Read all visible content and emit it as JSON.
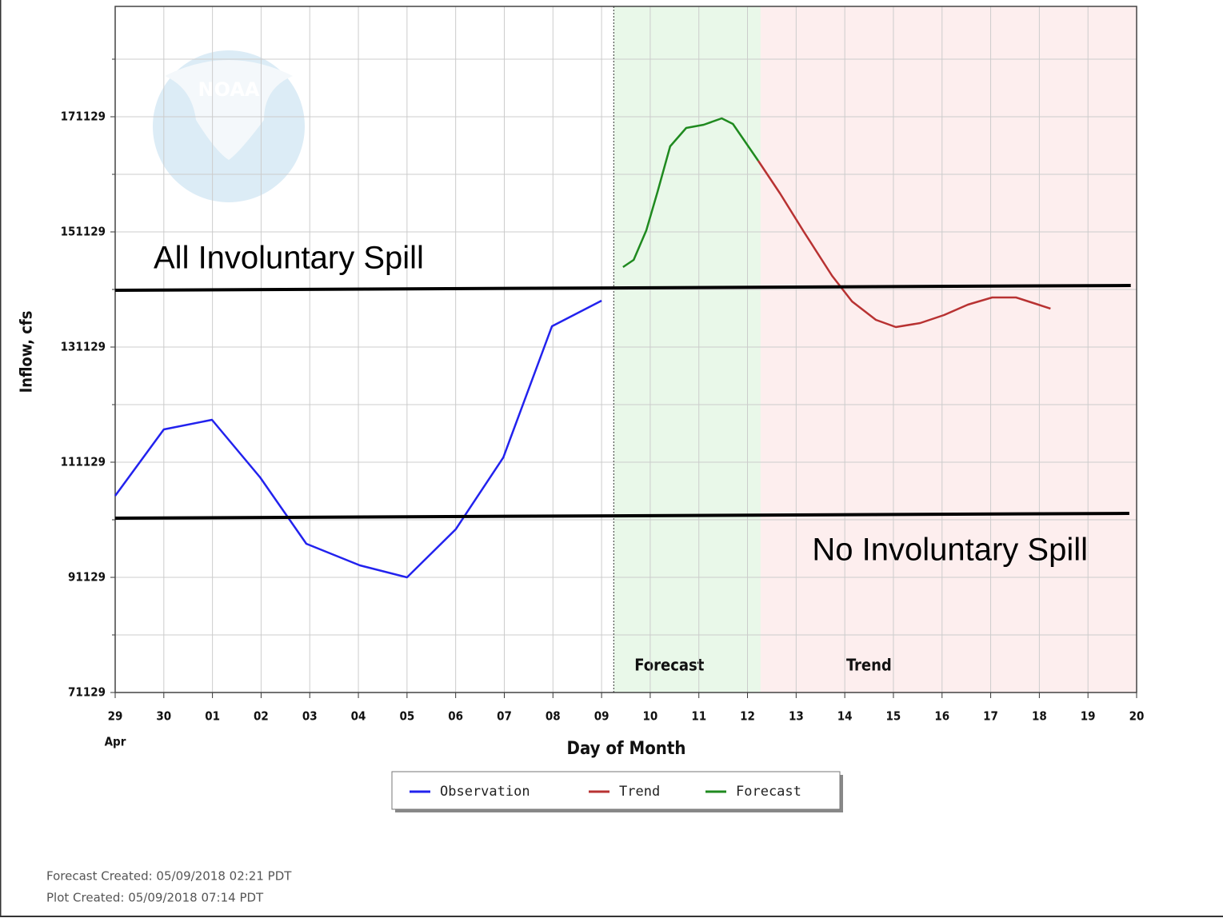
{
  "chart_data": {
    "type": "line",
    "logo_text": "NOAA",
    "y_label": "Inflow, cfs",
    "x_label": "Day of Month",
    "x_sublabel": "Apr",
    "xlim": [
      0,
      21
    ],
    "xticks": [
      {
        "value": 0,
        "label": "29"
      },
      {
        "value": 1,
        "label": "30"
      },
      {
        "value": 2,
        "label": "01"
      },
      {
        "value": 3,
        "label": "02"
      },
      {
        "value": 4,
        "label": "03"
      },
      {
        "value": 5,
        "label": "04"
      },
      {
        "value": 6,
        "label": "05"
      },
      {
        "value": 7,
        "label": "06"
      },
      {
        "value": 8,
        "label": "07"
      },
      {
        "value": 9,
        "label": "08"
      },
      {
        "value": 10,
        "label": "09"
      },
      {
        "value": 11,
        "label": "10"
      },
      {
        "value": 12,
        "label": "11"
      },
      {
        "value": 13,
        "label": "12"
      },
      {
        "value": 14,
        "label": "13"
      },
      {
        "value": 15,
        "label": "14"
      },
      {
        "value": 16,
        "label": "15"
      },
      {
        "value": 17,
        "label": "16"
      },
      {
        "value": 18,
        "label": "17"
      },
      {
        "value": 19,
        "label": "18"
      },
      {
        "value": 20,
        "label": "19"
      },
      {
        "value": 21,
        "label": "20"
      }
    ],
    "ylim": [
      71129,
      190296
    ],
    "yticks": [
      71129,
      91129,
      111129,
      131129,
      151129,
      171129
    ],
    "yminor": [
      81129,
      101129,
      121129,
      141129,
      161129,
      181129
    ],
    "grid": true,
    "divider_x": 10.25,
    "regions": [
      {
        "label": "Forecast",
        "x": [
          10.25,
          13.27
        ],
        "color": "#e9f8e9"
      },
      {
        "label": "Trend",
        "x": [
          13.27,
          21
        ],
        "color": "#fdeeee"
      }
    ],
    "series": [
      {
        "name": "Observation",
        "color": "#2222ee",
        "x": [
          0,
          1.0,
          1.99,
          2.98,
          3.93,
          5.03,
          6.0,
          7.0,
          7.98,
          8.98,
          10.0
        ],
        "values": [
          105296,
          116823,
          118490,
          108490,
          96962,
          93212,
          91129,
          99462,
          111962,
          134740,
          139185
        ]
      },
      {
        "name": "Trend",
        "color": "#b83232",
        "x": [
          13.22,
          13.67,
          14.16,
          14.74,
          15.15,
          15.64,
          16.05,
          16.55,
          17.04,
          17.53,
          18.03,
          18.52,
          18.93,
          19.23
        ],
        "values": [
          163490,
          157796,
          151129,
          143490,
          139046,
          135851,
          134601,
          135296,
          136685,
          138490,
          139740,
          139740,
          138629,
          137796
        ]
      },
      {
        "name": "Forecast",
        "color": "#1f8a1f",
        "x": [
          10.44,
          10.66,
          10.92,
          11.15,
          11.41,
          11.74,
          12.1,
          12.47,
          12.7,
          13.22
        ],
        "values": [
          145018,
          146268,
          151407,
          158073,
          165990,
          169185,
          169740,
          170851,
          169879,
          163490
        ]
      }
    ],
    "annotations": [
      {
        "text": "All Involuntary Spill",
        "x": [
          0,
          20.88
        ],
        "values": [
          140990,
          141824
        ]
      },
      {
        "text": "No Involuntary Spill",
        "x": [
          0,
          20.85
        ],
        "values": [
          101407,
          102240
        ]
      }
    ],
    "footer": [
      "Forecast Created: 05/09/2018 02:21 PDT",
      "Plot Created: 05/09/2018 07:14 PDT"
    ]
  }
}
